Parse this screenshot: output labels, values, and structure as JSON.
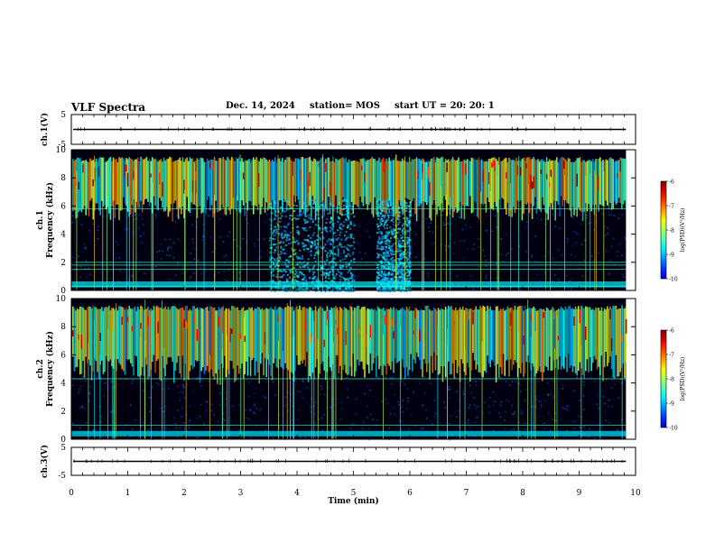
{
  "header": {
    "title": "VLF Spectra",
    "date": "Dec. 14, 2024",
    "station": "station= MOS",
    "start_ut": "start  UT  =   20: 20: 1"
  },
  "colors": {
    "background": "#ffffff",
    "axis": "#000000",
    "spectrogram_floor": "#000010"
  },
  "chart_data": [
    {
      "type": "line",
      "name": "ch1-waveform",
      "ylabel": "ch.1(V)",
      "ylim": [
        -5,
        5
      ],
      "yticks": [
        "5",
        "-5"
      ],
      "xlim": [
        0,
        10
      ],
      "trace_level": 0
    },
    {
      "type": "heatmap",
      "name": "ch1-spectrogram",
      "ylabel": "ch.1\nFrequency (kHz)",
      "ylim": [
        0,
        10
      ],
      "yticks": [
        "0",
        "2",
        "4",
        "6",
        "8",
        "10"
      ],
      "xlim": [
        0,
        10
      ],
      "data_end_min": 9.83,
      "colorbar": {
        "label": "log(PSD)(V²/Hz)",
        "range": [
          -10,
          -6
        ],
        "ticks": [
          "-6",
          "-7",
          "-8",
          "-9",
          "-10"
        ]
      },
      "emission_band_khz": [
        5.5,
        9.5
      ],
      "burst_regions_min": [
        [
          3.5,
          5.0
        ],
        [
          5.4,
          6.0
        ]
      ],
      "horizontal_lines_khz": [
        0.3,
        0.6,
        1.5,
        1.8,
        2.0,
        5.8
      ]
    },
    {
      "type": "heatmap",
      "name": "ch2-spectrogram",
      "ylabel": "ch.2\nFrequency (kHz)",
      "ylim": [
        0,
        10
      ],
      "yticks": [
        "0",
        "2",
        "4",
        "6",
        "8",
        "10"
      ],
      "xlim": [
        0,
        10
      ],
      "data_end_min": 9.83,
      "colorbar": {
        "label": "log(PSD)(V²/Hz)",
        "range": [
          -10,
          -6
        ],
        "ticks": [
          "-6",
          "-7",
          "-8",
          "-9",
          "-10"
        ]
      },
      "emission_band_khz": [
        4.5,
        9.5
      ],
      "horizontal_lines_khz": [
        1.0,
        4.3
      ]
    },
    {
      "type": "line",
      "name": "ch3-waveform",
      "ylabel": "ch.3(V)",
      "ylim": [
        -5,
        5
      ],
      "yticks": [
        "5",
        "-5"
      ],
      "xlim": [
        0,
        10
      ],
      "trace_level": 0
    }
  ],
  "xaxis": {
    "label": "Time (min)",
    "ticks": [
      "0",
      "1",
      "2",
      "3",
      "4",
      "5",
      "6",
      "7",
      "8",
      "9",
      "10"
    ]
  }
}
